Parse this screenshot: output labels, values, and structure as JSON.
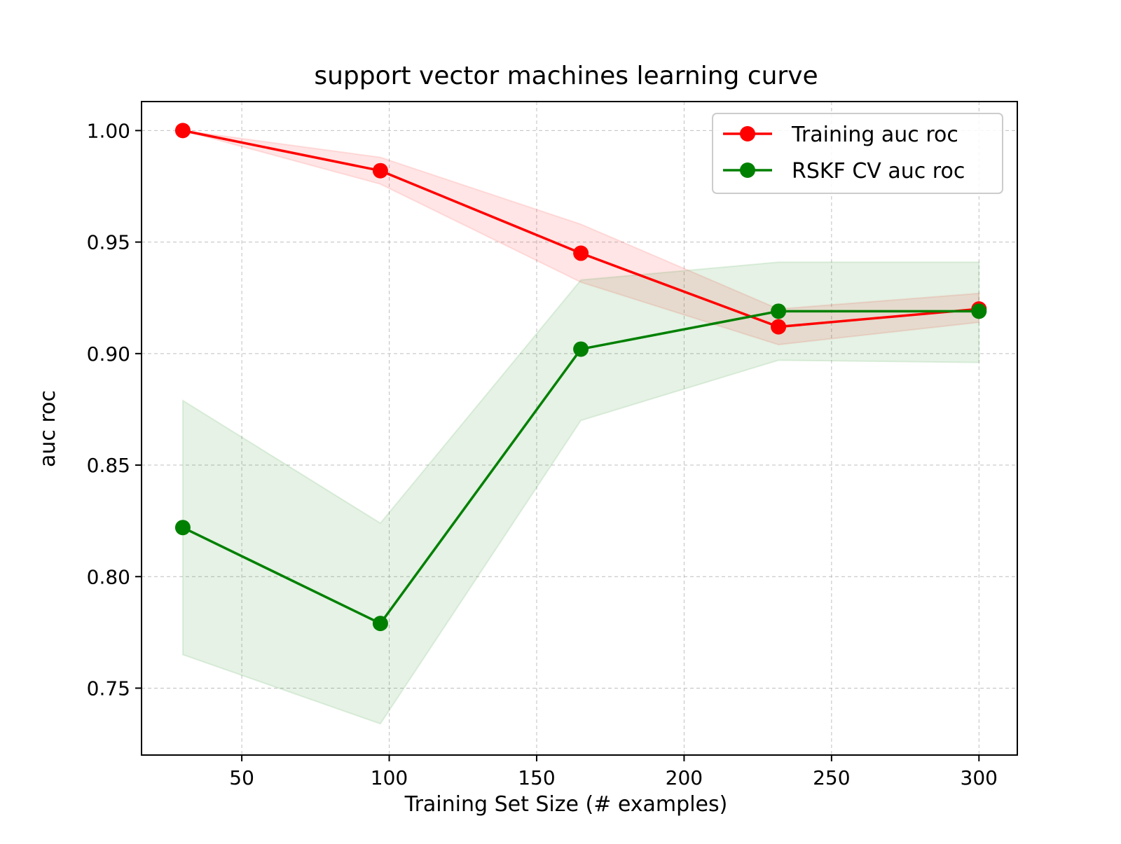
{
  "chart_data": {
    "type": "line",
    "title": "support vector machines learning curve",
    "xlabel": "Training Set Size (# examples)",
    "ylabel": "auc roc",
    "xlim": [
      16,
      313
    ],
    "ylim": [
      0.72,
      1.013
    ],
    "xticks": [
      50,
      100,
      150,
      200,
      250,
      300
    ],
    "yticks": [
      0.75,
      0.8,
      0.85,
      0.9,
      0.95,
      1.0
    ],
    "xtick_labels": [
      "50",
      "100",
      "150",
      "200",
      "250",
      "300"
    ],
    "ytick_labels": [
      "0.75",
      "0.80",
      "0.85",
      "0.90",
      "0.95",
      "1.00"
    ],
    "grid": true,
    "legend_position": "top-right",
    "x": [
      30,
      97,
      165,
      232,
      300
    ],
    "series": [
      {
        "name": "Training auc roc",
        "color": "#ff0000",
        "band_color": "#ff0000",
        "values": [
          1.0,
          0.982,
          0.945,
          0.912,
          0.92
        ],
        "upper": [
          1.0,
          0.988,
          0.958,
          0.92,
          0.927
        ],
        "lower": [
          1.0,
          0.976,
          0.932,
          0.904,
          0.914
        ]
      },
      {
        "name": "RSKF CV auc roc",
        "color": "#008000",
        "band_color": "#008000",
        "values": [
          0.822,
          0.779,
          0.902,
          0.919,
          0.919
        ],
        "upper": [
          0.879,
          0.824,
          0.933,
          0.941,
          0.941
        ],
        "lower": [
          0.765,
          0.734,
          0.87,
          0.897,
          0.896
        ]
      }
    ]
  }
}
